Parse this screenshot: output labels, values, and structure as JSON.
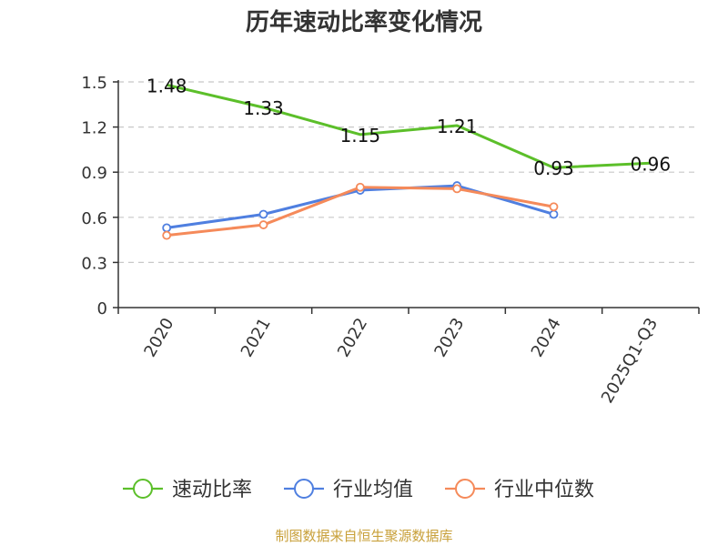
{
  "title": "历年速动比率变化情况",
  "footer": "制图数据来自恒生聚源数据库",
  "colors": {
    "speed_ratio": "#5cbf2a",
    "industry_avg": "#4f7fe0",
    "industry_median": "#f58a5a",
    "footer": "#c8a03a",
    "grid": "#c8c8c8",
    "axis": "#333333"
  },
  "chart_data": {
    "type": "line",
    "title": "历年速动比率变化情况",
    "categories": [
      "2020",
      "2021",
      "2022",
      "2023",
      "2024",
      "2025Q1-Q3"
    ],
    "ylim": [
      0,
      1.5
    ],
    "yticks": [
      "0",
      "0.3",
      "0.6",
      "0.9",
      "1.2",
      "1.5"
    ],
    "ytick_values": [
      0,
      0.3,
      0.6,
      0.9,
      1.2,
      1.5
    ],
    "grid": true,
    "legend_position": "bottom",
    "series": [
      {
        "name": "速动比率",
        "values": [
          1.48,
          1.33,
          1.15,
          1.21,
          0.93,
          0.96
        ],
        "labels": [
          "1.48",
          "1.33",
          "1.15",
          "1.21",
          "0.93",
          "0.96"
        ],
        "color_key": "speed_ratio",
        "show_markers": false
      },
      {
        "name": "行业均值",
        "values": [
          0.53,
          0.62,
          0.78,
          0.81,
          0.62,
          null
        ],
        "color_key": "industry_avg",
        "show_markers": true
      },
      {
        "name": "行业中位数",
        "values": [
          0.48,
          0.55,
          0.8,
          0.79,
          0.67,
          null
        ],
        "color_key": "industry_median",
        "show_markers": true
      }
    ]
  }
}
